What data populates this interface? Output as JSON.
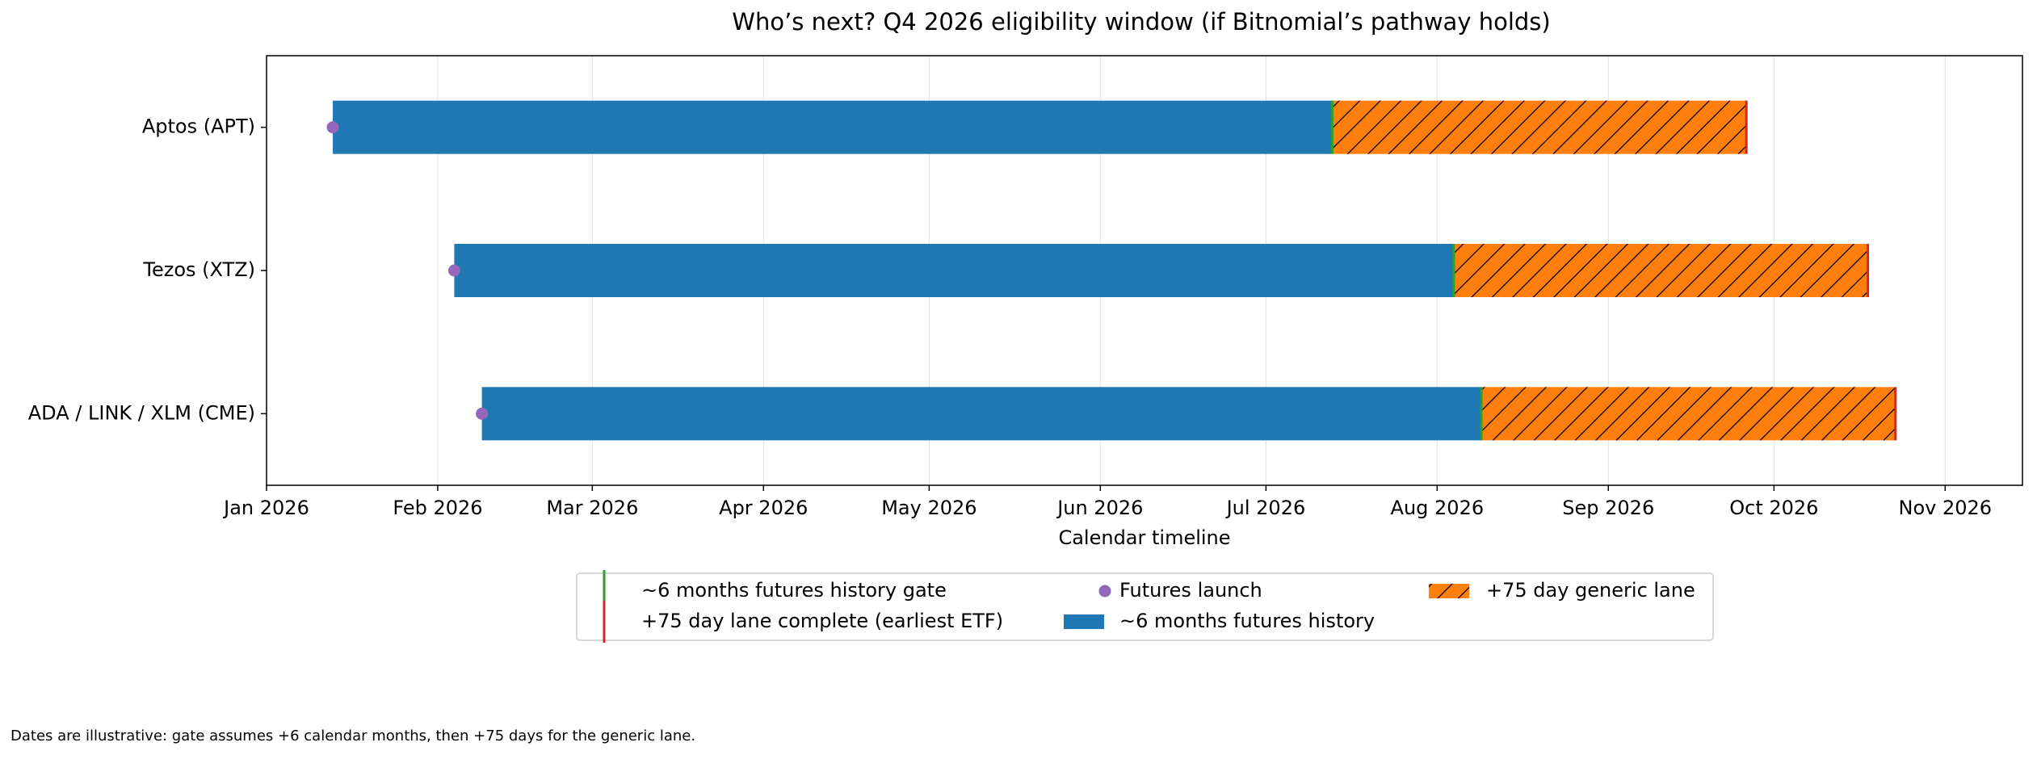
{
  "chart_data": {
    "type": "gantt",
    "title": "Who’s next? Q4 2026 eligibility window (if Bitnomial’s pathway holds)",
    "xlabel": "Calendar timeline",
    "categories": [
      "Aptos (APT)",
      "Tezos (XTZ)",
      "ADA / LINK / XLM (CME)"
    ],
    "series": [
      {
        "name": "Futures launch",
        "color": "#9467bd",
        "values": [
          "2026-01-13",
          "2026-02-04",
          "2026-02-09"
        ]
      },
      {
        "name": "~6 months futures history gate",
        "color": "#2ca02c",
        "values": [
          "2026-07-13",
          "2026-08-04",
          "2026-08-09"
        ]
      },
      {
        "name": "+75 day lane complete (earliest ETF)",
        "color": "#d62728",
        "values": [
          "2026-09-26",
          "2026-10-18",
          "2026-10-23"
        ]
      }
    ],
    "spans": [
      {
        "name": "~6 months futures history",
        "color": "#1f77b4"
      },
      {
        "name": "+75 day generic lane",
        "color": "#ff7f0e",
        "hatch": true
      }
    ],
    "xlim": [
      "2026-01-01",
      "2026-11-15"
    ],
    "xticks": [
      {
        "value": "2026-01-01",
        "label": "Jan 2026"
      },
      {
        "value": "2026-02-01",
        "label": "Feb 2026"
      },
      {
        "value": "2026-03-01",
        "label": "Mar 2026"
      },
      {
        "value": "2026-04-01",
        "label": "Apr 2026"
      },
      {
        "value": "2026-05-01",
        "label": "May 2026"
      },
      {
        "value": "2026-06-01",
        "label": "Jun 2026"
      },
      {
        "value": "2026-07-01",
        "label": "Jul 2026"
      },
      {
        "value": "2026-08-01",
        "label": "Aug 2026"
      },
      {
        "value": "2026-09-01",
        "label": "Sep 2026"
      },
      {
        "value": "2026-10-01",
        "label": "Oct 2026"
      },
      {
        "value": "2026-11-01",
        "label": "Nov 2026"
      }
    ],
    "grid": true,
    "footnote": "Dates are illustrative: gate assumes +6 calendar months, then +75 days for the generic lane."
  }
}
